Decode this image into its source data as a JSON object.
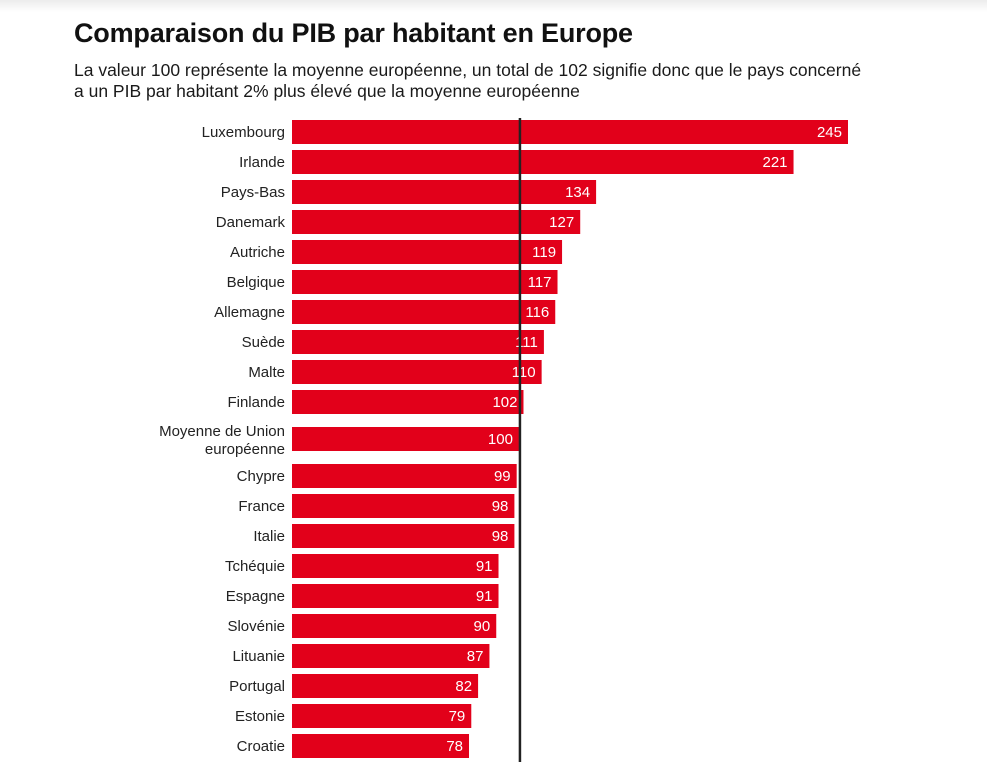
{
  "chart_data": {
    "type": "bar",
    "orientation": "horizontal",
    "title": "Comparaison du PIB par habitant en Europe",
    "subtitle": "La valeur 100 représente la moyenne européenne, un total de 102 signifie donc que le pays concerné a un PIB par habitant 2% plus élevé que la moyenne européenne",
    "categories": [
      "Luxembourg",
      "Irlande",
      "Pays-Bas",
      "Danemark",
      "Autriche",
      "Belgique",
      "Allemagne",
      "Suède",
      "Malte",
      "Finlande",
      "Moyenne de Union européenne",
      "Chypre",
      "France",
      "Italie",
      "Tchéquie",
      "Espagne",
      "Slovénie",
      "Lituanie",
      "Portugal",
      "Estonie",
      "Croatie"
    ],
    "values": [
      245,
      221,
      134,
      127,
      119,
      117,
      116,
      111,
      110,
      102,
      100,
      99,
      98,
      98,
      91,
      91,
      90,
      87,
      82,
      79,
      78
    ],
    "reference_line": 100,
    "xlim": [
      0,
      245
    ],
    "bar_color": "#e2001a",
    "reference_line_color": "#222222",
    "grid": false,
    "legend": "none"
  }
}
